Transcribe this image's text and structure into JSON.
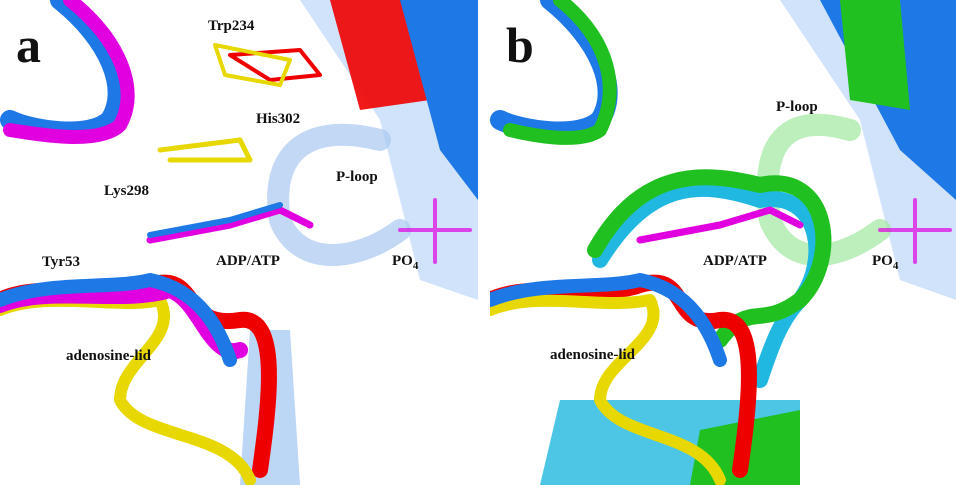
{
  "panels": [
    {
      "label": "a",
      "annotations": {
        "trp": "Trp234",
        "his": "His302",
        "lys": "Lys298",
        "ploop": "P-loop",
        "adp": "ADP/ATP",
        "po4": {
          "base": "PO",
          "sub": "4"
        },
        "tyr": "Tyr53",
        "lid": "adenosine-lid"
      }
    },
    {
      "label": "b",
      "annotations": {
        "ploop": "P-loop",
        "adp": "ADP/ATP",
        "po4": {
          "base": "PO",
          "sub": "4"
        },
        "lid": "adenosine-lid"
      }
    }
  ]
}
